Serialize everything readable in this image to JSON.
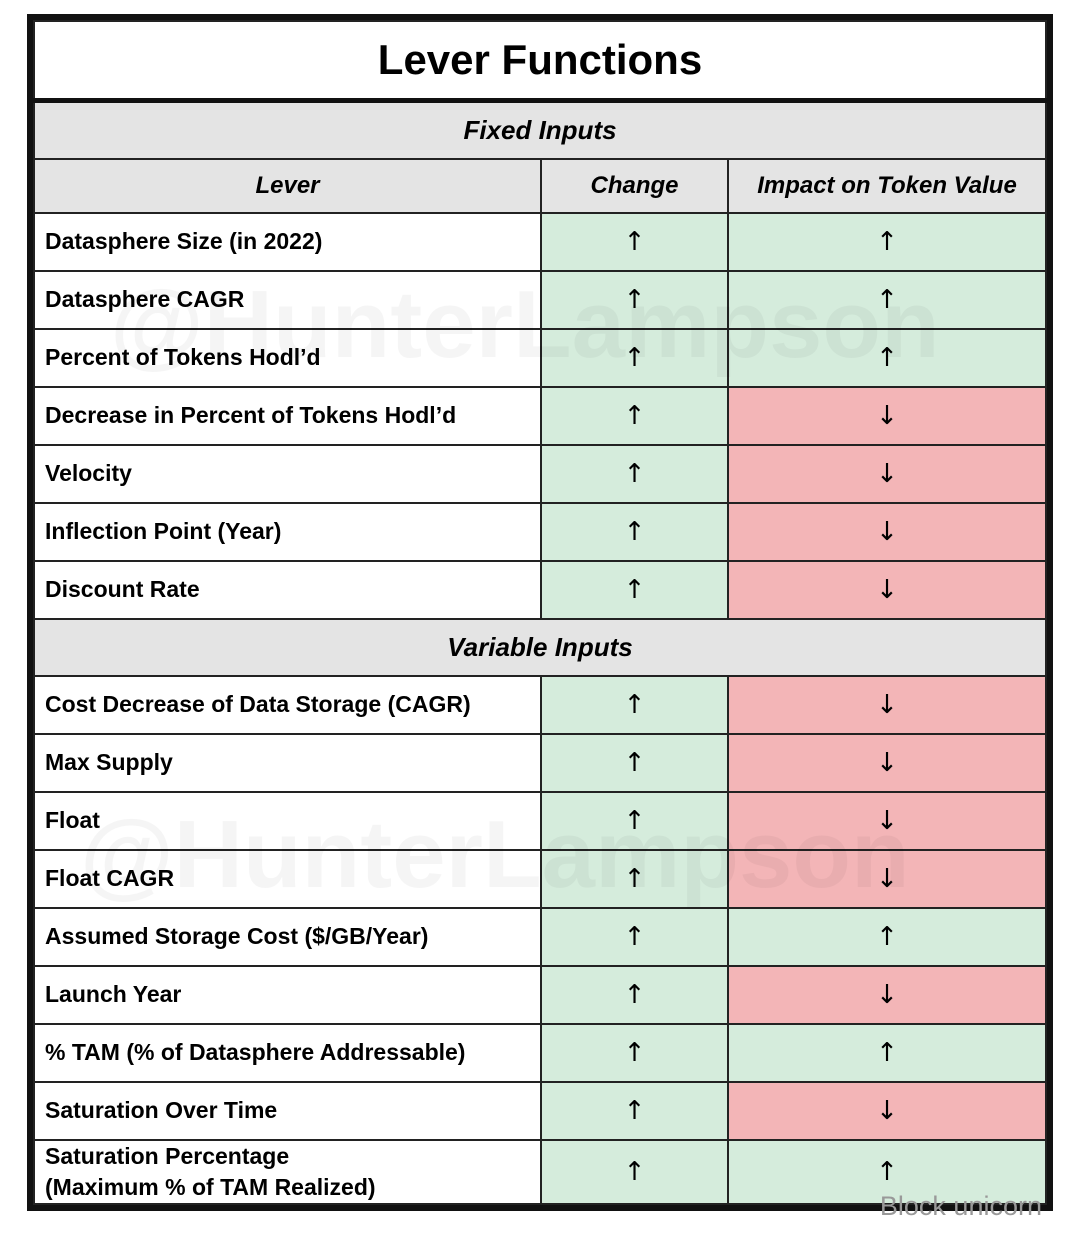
{
  "title": "Lever Functions",
  "columns": [
    "Lever",
    "Change",
    "Impact on Token Value"
  ],
  "change_color": "#d5ecdc",
  "sections": [
    {
      "name": "Fixed Inputs",
      "rows": [
        {
          "lever": "Datasphere Size (in 2022)",
          "change": "↑",
          "impact": "↑",
          "impact_color": "#d5ecdc"
        },
        {
          "lever": "Datasphere CAGR",
          "change": "↑",
          "impact": "↑",
          "impact_color": "#d5ecdc"
        },
        {
          "lever": "Percent of Tokens Hodl’d",
          "change": "↑",
          "impact": "↑",
          "impact_color": "#d5ecdc"
        },
        {
          "lever": "Decrease in Percent of Tokens Hodl’d",
          "change": "↑",
          "impact": "↓",
          "impact_color": "#f3b5b7"
        },
        {
          "lever": "Velocity",
          "change": "↑",
          "impact": "↓",
          "impact_color": "#f3b5b7"
        },
        {
          "lever": "Inflection Point (Year)",
          "change": "↑",
          "impact": "↓",
          "impact_color": "#f3b5b7"
        },
        {
          "lever": "Discount Rate",
          "change": "↑",
          "impact": "↓",
          "impact_color": "#f3b5b7"
        }
      ]
    },
    {
      "name": "Variable Inputs",
      "rows": [
        {
          "lever": "Cost Decrease of Data Storage (CAGR)",
          "change": "↑",
          "impact": "↓",
          "impact_color": "#f3b5b7"
        },
        {
          "lever": "Max Supply",
          "change": "↑",
          "impact": "↓",
          "impact_color": "#f3b5b7"
        },
        {
          "lever": "Float",
          "change": "↑",
          "impact": "↓",
          "impact_color": "#f3b5b7"
        },
        {
          "lever": "Float CAGR",
          "change": "↑",
          "impact": "↓",
          "impact_color": "#f3b5b7"
        },
        {
          "lever": "Assumed Storage Cost ($/GB/Year)",
          "change": "↑",
          "impact": "↑",
          "impact_color": "#d5ecdc"
        },
        {
          "lever": "Launch Year",
          "change": "↑",
          "impact": "↓",
          "impact_color": "#f3b5b7"
        },
        {
          "lever": "% TAM (% of Datasphere Addressable)",
          "change": "↑",
          "impact": "↑",
          "impact_color": "#d5ecdc"
        },
        {
          "lever": "Saturation Over Time",
          "change": "↑",
          "impact": "↓",
          "impact_color": "#f3b5b7"
        },
        {
          "lever": "Saturation Percentage\n(Maximum % of TAM Realized)",
          "change": "↑",
          "impact": "↑",
          "impact_color": "#d5ecdc"
        }
      ]
    }
  ],
  "watermark": "@HunterLampson",
  "brand": "Block unicorn"
}
